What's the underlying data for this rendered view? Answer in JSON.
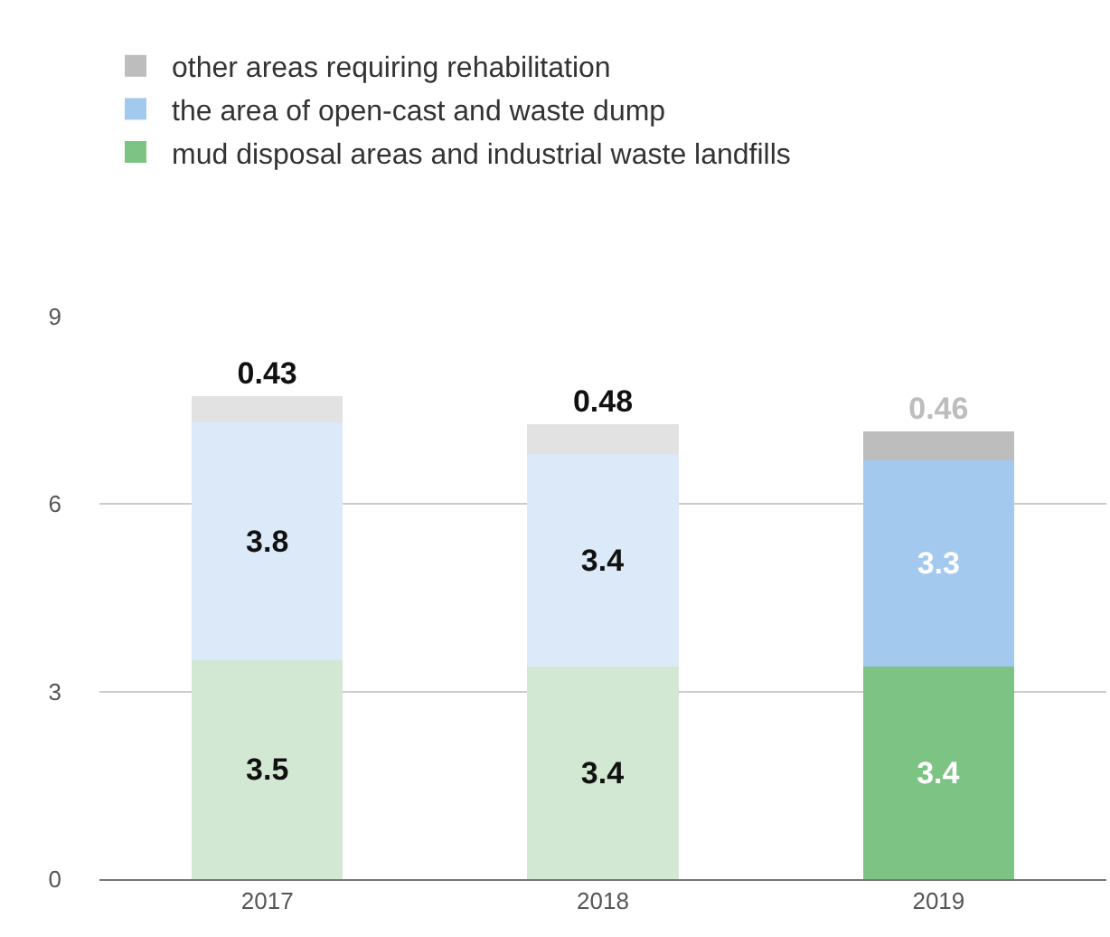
{
  "chart_data": {
    "type": "bar",
    "stacked": true,
    "categories": [
      "2017",
      "2018",
      "2019"
    ],
    "series": [
      {
        "name": "mud disposal areas and industrial waste landfills",
        "color": "#7dc383",
        "colors": [
          "#d3e8d3",
          "#d3e8d3",
          "#7dc383"
        ],
        "values": [
          3.5,
          3.4,
          3.4
        ]
      },
      {
        "name": "the area of open-cast and waste dump",
        "color": "#a3c9ee",
        "colors": [
          "#dce9f8",
          "#dce9f8",
          "#a3c9ee"
        ],
        "values": [
          3.8,
          3.4,
          3.3
        ]
      },
      {
        "name": "other areas requiring rehabilitation",
        "color": "#bdbdbd",
        "colors": [
          "#e2e2e2",
          "#e2e2e2",
          "#bdbdbd"
        ],
        "values": [
          0.43,
          0.48,
          0.46
        ]
      }
    ],
    "ylim": [
      0,
      9
    ],
    "yticks": [
      0,
      3,
      6,
      9
    ],
    "grid": "y",
    "legend": "top left",
    "data_labels": true
  }
}
